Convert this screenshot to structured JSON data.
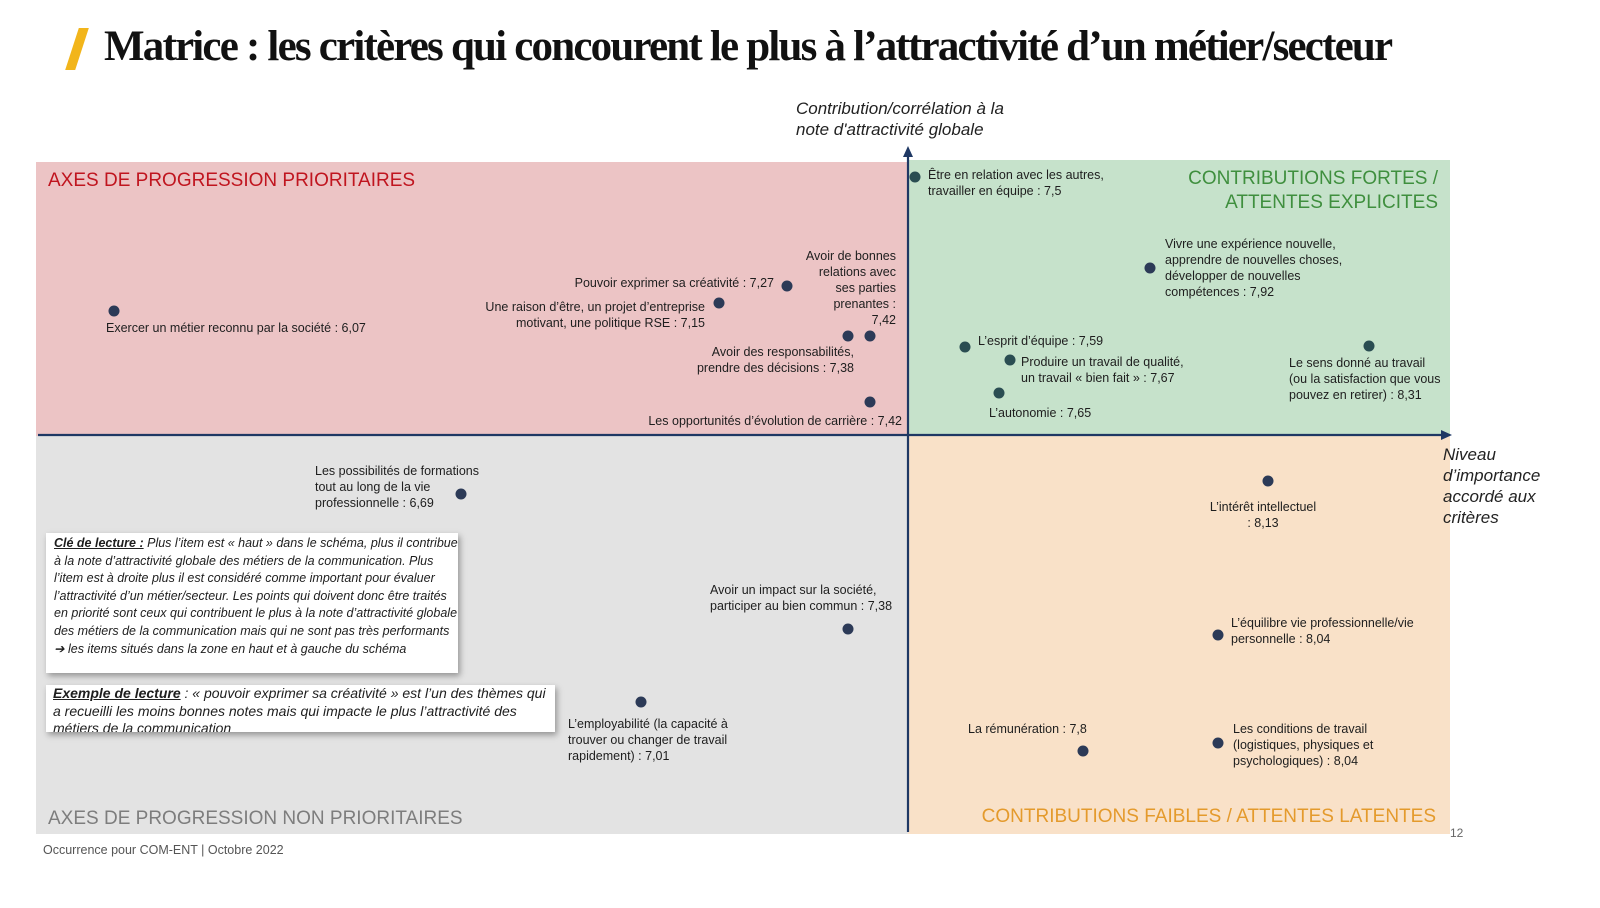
{
  "title": "Matrice : les critères qui concourent le plus à l’attractivité d’un métier/secteur",
  "axes": {
    "y_title_lines": [
      "Contribution/corrélation à la",
      "note d'attractivité globale"
    ],
    "x_title_lines": [
      "Niveau",
      "d’importance",
      "accordé aux",
      "critères"
    ]
  },
  "quadrants": {
    "top_left": "AXES DE PROGRESSION PRIORITAIRES",
    "top_right_lines": [
      "CONTRIBUTIONS FORTES /",
      "ATTENTES EXPLICITES"
    ],
    "bottom_left": "AXES DE PROGRESSION NON PRIORITAIRES",
    "bottom_right": "CONTRIBUTIONS FAIBLES / ATTENTES LATENTES"
  },
  "colors": {
    "top_left": "#ecc4c5",
    "top_right": "#c6e2cb",
    "bottom_left": "#e3e3e3",
    "bottom_right": "#f9e1c8",
    "axis": "#1f3864",
    "accent": "#f2b51b",
    "red_label": "#c0151f",
    "green_label": "#3f8f3e",
    "orange_label": "#e49a2c"
  },
  "items": [
    {
      "lines": [
        "Être en relation avec les autres,",
        "travailler en équipe : 7,5"
      ]
    },
    {
      "lines": [
        "Vivre une expérience nouvelle,",
        "apprendre de nouvelles choses,",
        "développer de nouvelles",
        "compétences : 7,92"
      ]
    },
    {
      "lines": [
        "Avoir de bonnes",
        "relations avec",
        "ses parties",
        "prenantes :",
        "7,42"
      ]
    },
    {
      "lines": [
        "Pouvoir exprimer sa créativité : 7,27"
      ]
    },
    {
      "lines": [
        "Une raison d’être, un projet d’entreprise",
        "motivant, une politique RSE : 7,15"
      ]
    },
    {
      "lines": [
        "Exercer un métier reconnu par la société : 6,07"
      ]
    },
    {
      "lines": [
        "Avoir des responsabilités,",
        "prendre des décisions : 7,38"
      ]
    },
    {
      "lines": [
        "L’esprit d’équipe : 7,59"
      ]
    },
    {
      "lines": [
        "Produire un travail de qualité,",
        "un travail « bien fait » : 7,67"
      ]
    },
    {
      "lines": [
        "L’autonomie : 7,65"
      ]
    },
    {
      "lines": [
        "Le sens donné au travail",
        "(ou la satisfaction que vous",
        "pouvez en retirer) : 8,31"
      ]
    },
    {
      "lines": [
        "Les opportunités d’évolution de carrière : 7,42"
      ]
    },
    {
      "lines": [
        "Les possibilités de formations",
        "tout au long de la vie",
        "professionnelle : 6,69"
      ]
    },
    {
      "lines": [
        "L’intérêt intellectuel",
        ": 8,13"
      ]
    },
    {
      "lines": [
        "Avoir un impact sur la société,",
        "participer au bien commun : 7,38"
      ]
    },
    {
      "lines": [
        "L’équilibre vie professionnelle/vie",
        "personnelle : 8,04"
      ]
    },
    {
      "lines": [
        "L’employabilité (la capacité à",
        "trouver ou changer de travail",
        "rapidement) : 7,01"
      ]
    },
    {
      "lines": [
        "La rémunération : 7,8"
      ]
    },
    {
      "lines": [
        "Les conditions de travail",
        "(logistiques, physiques et",
        "psychologiques) : 8,04"
      ]
    }
  ],
  "key_box": {
    "heading": "Clé de lecture :",
    "text": "Plus l’item est « haut » dans le schéma, plus il contribue à la note d’attractivité globale des métiers de la communication. Plus l’item est à droite plus il est considéré comme important pour évaluer l’attractivité d’un métier/secteur. Les points qui doivent donc être traités en priorité sont ceux qui contribuent le plus à la note d’attractivité globale des métiers de la communication mais qui ne sont pas très performants",
    "arrow": "➔",
    "tail": "les items situés dans la zone en haut et à gauche du schéma"
  },
  "example_box": {
    "heading": "Exemple de lecture",
    "text": ": « pouvoir exprimer sa créativité » est l’un des thèmes qui a recueilli les moins bonnes notes mais qui impacte le plus l’attractivité des métiers de la communication"
  },
  "footer": "Occurrence pour COM-ENT | Octobre 2022",
  "page_number": "12"
}
